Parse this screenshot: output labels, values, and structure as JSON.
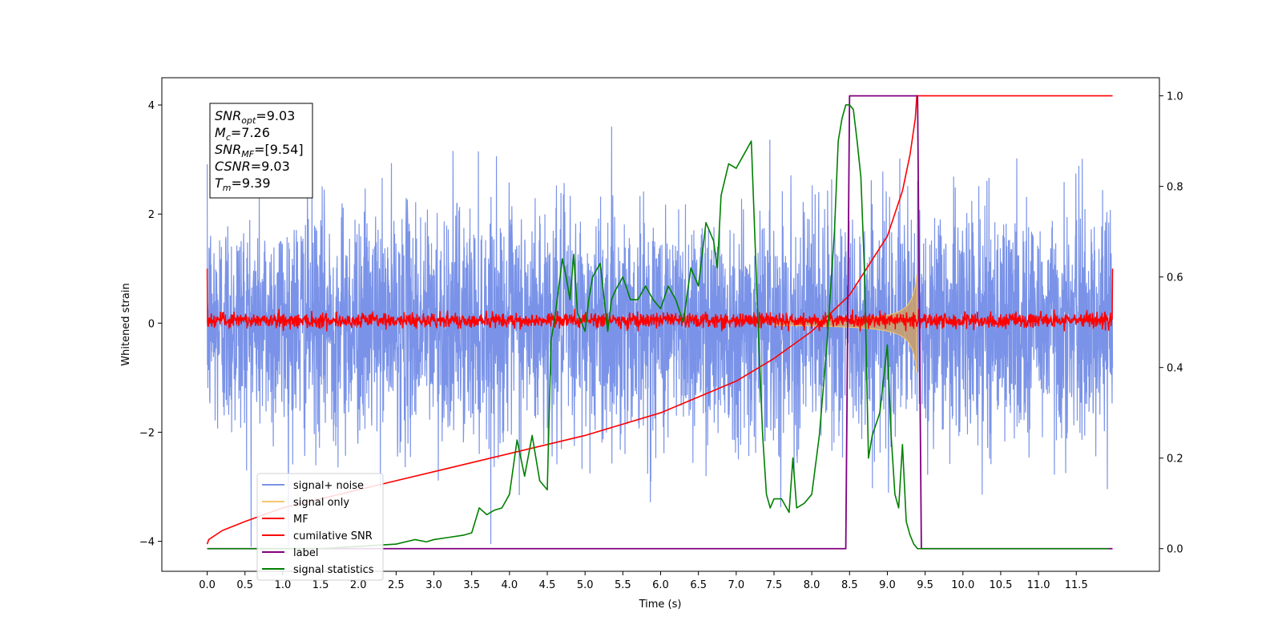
{
  "chart_data": {
    "type": "line",
    "xlabel": "Time (s)",
    "ylabel": "Whitened strain",
    "x_ticks": [
      "0.0",
      "0.5",
      "1.0",
      "1.5",
      "2.0",
      "2.5",
      "3.0",
      "3.5",
      "4.0",
      "4.5",
      "5.0",
      "5.5",
      "6.0",
      "6.5",
      "7.0",
      "7.5",
      "8.0",
      "8.5",
      "9.0",
      "9.5",
      "10.0",
      "10.5",
      "11.0",
      "11.5"
    ],
    "y_left_ticks": [
      "4",
      "2",
      "0",
      "−2",
      "−4"
    ],
    "y_right_ticks": [
      "1.0",
      "0.8",
      "0.6",
      "0.4",
      "0.2",
      "0.0"
    ],
    "xlim": [
      -0.6,
      12.6
    ],
    "ylim_left": [
      -4.55,
      4.5
    ],
    "ylim_right": [
      -0.05,
      1.04
    ],
    "grid": false,
    "legend_position": "lower-left",
    "annotation": [
      {
        "base": "SNR",
        "sub": "opt",
        "value": "=9.03"
      },
      {
        "base": "M",
        "sub": "c",
        "value": "=7.26"
      },
      {
        "base": "SNR",
        "sub": "MF",
        "value": "=[9.54]"
      },
      {
        "base": "CSNR",
        "sub": "",
        "value": "=9.03"
      },
      {
        "base": "T",
        "sub": "m",
        "value": "=9.39"
      }
    ],
    "series": [
      {
        "name": "signal+ noise",
        "color": "#7a93e8",
        "axis": "left",
        "style": "noise",
        "x_range": [
          0,
          11.98
        ],
        "amplitude_range": [
          -4.1,
          4.1
        ]
      },
      {
        "name": "signal only",
        "color": "#f5c76a",
        "axis": "left",
        "style": "chirp",
        "x_range": [
          7.5,
          9.39
        ],
        "peak": 0.9
      },
      {
        "name": "MF",
        "color": "#ff0000",
        "axis": "left",
        "style": "noise_small",
        "x_range": [
          0,
          11.98
        ],
        "amplitude_range": [
          -0.15,
          0.3
        ]
      },
      {
        "name": "cumilative SNR",
        "color": "#ff0000",
        "axis": "right",
        "x": [
          0.0,
          0.02,
          0.2,
          0.5,
          1.0,
          2.0,
          3.0,
          4.0,
          5.0,
          6.0,
          7.0,
          7.5,
          8.0,
          8.5,
          9.0,
          9.2,
          9.3,
          9.37,
          9.39,
          9.4,
          11.98
        ],
        "values": [
          0.01,
          0.02,
          0.04,
          0.06,
          0.09,
          0.13,
          0.17,
          0.21,
          0.25,
          0.3,
          0.37,
          0.42,
          0.48,
          0.56,
          0.69,
          0.79,
          0.87,
          0.95,
          1.0,
          1.0,
          1.0
        ]
      },
      {
        "name": "label",
        "color": "#800080",
        "axis": "right",
        "x": [
          0.0,
          8.45,
          8.5,
          9.4,
          9.45,
          11.98
        ],
        "values": [
          0.0,
          0.0,
          1.0,
          1.0,
          0.0,
          0.0
        ]
      },
      {
        "name": "signal statistics",
        "color": "#008000",
        "axis": "right",
        "x": [
          0.0,
          0.5,
          1.0,
          1.5,
          2.0,
          2.5,
          2.75,
          2.9,
          3.0,
          3.2,
          3.4,
          3.5,
          3.6,
          3.7,
          3.75,
          3.8,
          3.9,
          4.0,
          4.1,
          4.2,
          4.3,
          4.4,
          4.5,
          4.55,
          4.6,
          4.7,
          4.75,
          4.8,
          4.85,
          4.9,
          5.0,
          5.05,
          5.1,
          5.2,
          5.3,
          5.35,
          5.4,
          5.5,
          5.6,
          5.7,
          5.8,
          5.9,
          6.0,
          6.1,
          6.2,
          6.3,
          6.4,
          6.5,
          6.6,
          6.7,
          6.75,
          6.8,
          6.9,
          7.0,
          7.1,
          7.2,
          7.3,
          7.35,
          7.4,
          7.45,
          7.5,
          7.6,
          7.7,
          7.75,
          7.8,
          7.9,
          8.0,
          8.1,
          8.2,
          8.3,
          8.35,
          8.4,
          8.45,
          8.5,
          8.55,
          8.6,
          8.65,
          8.7,
          8.75,
          8.8,
          8.9,
          9.0,
          9.05,
          9.1,
          9.15,
          9.2,
          9.25,
          9.3,
          9.35,
          9.4,
          9.45,
          9.5,
          10.0,
          11.0,
          11.5,
          11.93
        ],
        "values": [
          0.0,
          0.0,
          0.0,
          0.0,
          0.005,
          0.01,
          0.02,
          0.015,
          0.02,
          0.025,
          0.03,
          0.035,
          0.09,
          0.075,
          0.08,
          0.085,
          0.09,
          0.12,
          0.24,
          0.16,
          0.25,
          0.15,
          0.13,
          0.46,
          0.51,
          0.64,
          0.6,
          0.55,
          0.65,
          0.52,
          0.48,
          0.55,
          0.6,
          0.63,
          0.48,
          0.55,
          0.57,
          0.6,
          0.55,
          0.55,
          0.58,
          0.55,
          0.53,
          0.58,
          0.55,
          0.5,
          0.62,
          0.58,
          0.72,
          0.68,
          0.62,
          0.78,
          0.85,
          0.84,
          0.87,
          0.9,
          0.45,
          0.25,
          0.12,
          0.09,
          0.11,
          0.11,
          0.08,
          0.2,
          0.09,
          0.1,
          0.12,
          0.25,
          0.45,
          0.7,
          0.9,
          0.95,
          0.98,
          0.98,
          0.97,
          0.9,
          0.82,
          0.6,
          0.2,
          0.25,
          0.3,
          0.45,
          0.25,
          0.12,
          0.09,
          0.23,
          0.06,
          0.03,
          0.01,
          0.0,
          0.0,
          0.0,
          0.0,
          0.0,
          0.0,
          0.0
        ]
      }
    ]
  }
}
